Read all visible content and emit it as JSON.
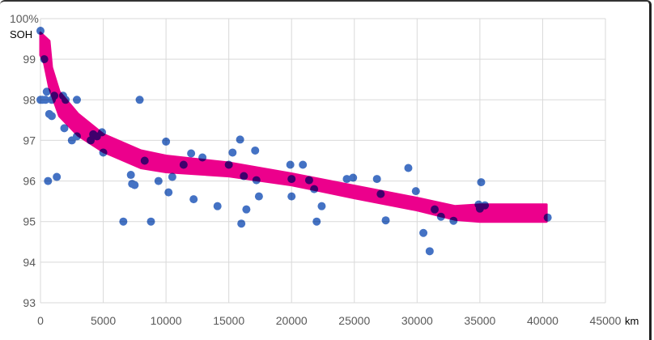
{
  "chart_data": {
    "type": "scatter",
    "title": "",
    "xlabel": "km",
    "ylabel": "SOH",
    "y_top_label": "100%",
    "xlim": [
      0,
      45000
    ],
    "ylim": [
      93,
      100
    ],
    "x_ticks": [
      "0",
      "5000",
      "10000",
      "15000",
      "20000",
      "25000",
      "30000",
      "35000",
      "40000",
      "45000"
    ],
    "y_ticks": [
      "93",
      "94",
      "95",
      "96",
      "97",
      "98",
      "99"
    ],
    "grid": true,
    "colors": {
      "points": "#4472c4",
      "trend_band": "#ec008c",
      "grid": "#d9d9d9"
    },
    "points": [
      [
        0,
        99.7
      ],
      [
        300,
        99.0
      ],
      [
        0,
        98.0
      ],
      [
        150,
        98.0
      ],
      [
        500,
        98.2
      ],
      [
        400,
        98.0
      ],
      [
        700,
        97.65
      ],
      [
        900,
        97.6
      ],
      [
        1100,
        98.1
      ],
      [
        900,
        98.0
      ],
      [
        1800,
        98.1
      ],
      [
        2000,
        98.0
      ],
      [
        2900,
        98.0
      ],
      [
        1300,
        96.1
      ],
      [
        600,
        96.0
      ],
      [
        1900,
        97.3
      ],
      [
        2500,
        97.0
      ],
      [
        2900,
        97.1
      ],
      [
        4000,
        97.0
      ],
      [
        4200,
        97.15
      ],
      [
        4500,
        97.1
      ],
      [
        4900,
        97.2
      ],
      [
        5000,
        96.7
      ],
      [
        7900,
        98.0
      ],
      [
        10000,
        96.97
      ],
      [
        6600,
        95.0
      ],
      [
        8800,
        95.0
      ],
      [
        7200,
        96.15
      ],
      [
        7300,
        95.93
      ],
      [
        7500,
        95.9
      ],
      [
        8300,
        96.5
      ],
      [
        9400,
        96.0
      ],
      [
        10200,
        95.72
      ],
      [
        10500,
        96.1
      ],
      [
        11400,
        96.4
      ],
      [
        12000,
        96.68
      ],
      [
        12200,
        95.55
      ],
      [
        12900,
        96.58
      ],
      [
        14100,
        95.38
      ],
      [
        15000,
        96.4
      ],
      [
        15300,
        96.7
      ],
      [
        15900,
        97.02
      ],
      [
        16000,
        94.95
      ],
      [
        16200,
        96.12
      ],
      [
        16400,
        95.3
      ],
      [
        17100,
        96.75
      ],
      [
        17200,
        96.02
      ],
      [
        17400,
        95.62
      ],
      [
        19900,
        96.4
      ],
      [
        20000,
        96.05
      ],
      [
        20000,
        95.62
      ],
      [
        20900,
        96.4
      ],
      [
        21400,
        96.02
      ],
      [
        21800,
        95.8
      ],
      [
        22000,
        95.0
      ],
      [
        22400,
        95.38
      ],
      [
        24400,
        96.05
      ],
      [
        24900,
        96.08
      ],
      [
        26800,
        96.05
      ],
      [
        27100,
        95.68
      ],
      [
        27500,
        95.03
      ],
      [
        29300,
        96.32
      ],
      [
        29900,
        95.75
      ],
      [
        30500,
        94.72
      ],
      [
        31000,
        94.27
      ],
      [
        31400,
        95.3
      ],
      [
        31900,
        95.12
      ],
      [
        32900,
        95.02
      ],
      [
        34900,
        95.42
      ],
      [
        35000,
        95.32
      ],
      [
        35100,
        95.97
      ],
      [
        35400,
        95.4
      ],
      [
        40400,
        95.1
      ]
    ],
    "trend_band": {
      "upper": [
        [
          0,
          99.65
        ],
        [
          700,
          99.45
        ],
        [
          900,
          98.8
        ],
        [
          1500,
          98.2
        ],
        [
          3000,
          97.65
        ],
        [
          5000,
          97.15
        ],
        [
          8000,
          96.75
        ],
        [
          10000,
          96.62
        ],
        [
          15000,
          96.45
        ],
        [
          20000,
          96.18
        ],
        [
          25000,
          95.88
        ],
        [
          30000,
          95.58
        ],
        [
          33000,
          95.38
        ],
        [
          35000,
          95.42
        ],
        [
          40300,
          95.42
        ]
      ],
      "lower": [
        [
          40300,
          95.0
        ],
        [
          35000,
          95.0
        ],
        [
          33000,
          95.05
        ],
        [
          30000,
          95.28
        ],
        [
          25000,
          95.58
        ],
        [
          20000,
          95.9
        ],
        [
          15000,
          96.12
        ],
        [
          10000,
          96.22
        ],
        [
          8000,
          96.32
        ],
        [
          5000,
          96.72
        ],
        [
          3000,
          97.12
        ],
        [
          1500,
          97.6
        ],
        [
          700,
          98.3
        ],
        [
          300,
          98.9
        ],
        [
          0,
          99.1
        ]
      ]
    }
  }
}
